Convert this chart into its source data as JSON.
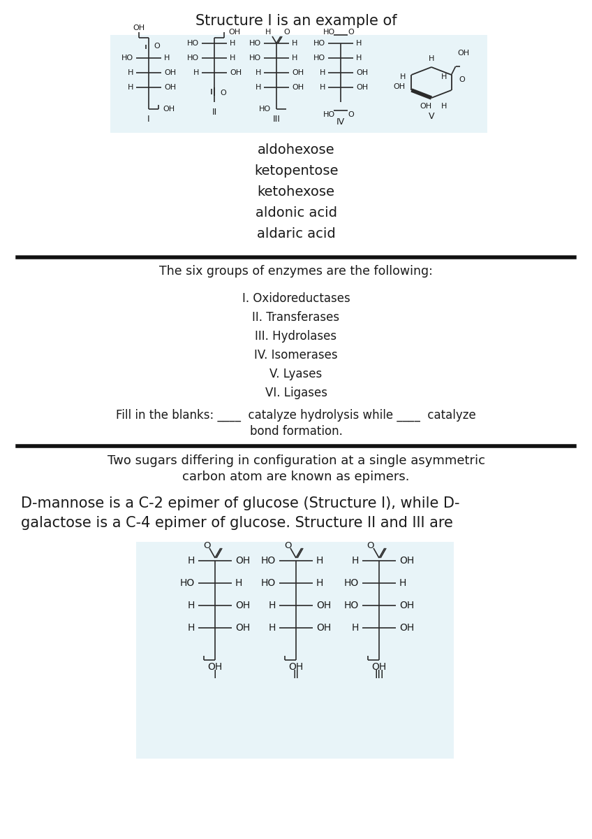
{
  "title": "Structure I is an example of",
  "bg_color": "#ffffff",
  "box1_color": "#e8f4f8",
  "box2_color": "#e8f4f8",
  "answer_options": [
    "aldohexose",
    "ketopentose",
    "ketohexose",
    "aldonic acid",
    "aldaric acid"
  ],
  "enzyme_header": "The six groups of enzymes are the following:",
  "enzymes": [
    "I. Oxidoreductases",
    "II. Transferases",
    "III. Hydrolases",
    "IV. Isomerases",
    "V. Lyases",
    "VI. Ligases"
  ],
  "fill_line1": "Fill in the blanks: ____  catalyze hydrolysis while ____  catalyze",
  "fill_line2": "bond formation.",
  "epimer_text1": "Two sugars differing in configuration at a single asymmetric",
  "epimer_text2": "carbon atom are known as epimers.",
  "epimer_text3": "D-mannose is a C-2 epimer of glucose (Structure I), while D-",
  "epimer_text4": "galactose is a C-4 epimer of glucose. Structure II and III are"
}
